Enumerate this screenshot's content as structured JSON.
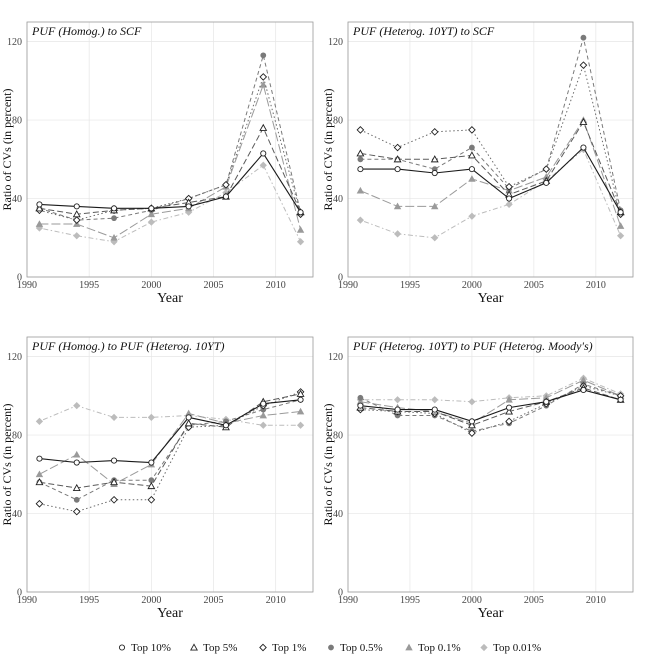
{
  "legend": [
    {
      "name": "Top 10%",
      "marker": "circle-open",
      "color": "#1a1a1a",
      "dash": "solid"
    },
    {
      "name": "Top 5%",
      "marker": "triangle-open",
      "color": "#5a5a5a",
      "dash": "long"
    },
    {
      "name": "Top 1%",
      "marker": "diamond-open",
      "color": "#6a6a6a",
      "dash": "dotted"
    },
    {
      "name": "Top 0.5%",
      "marker": "circle-fill",
      "color": "#7a7a7a",
      "dash": "dashed"
    },
    {
      "name": "Top 0.1%",
      "marker": "triangle-fill",
      "color": "#9a9a9a",
      "dash": "longdash"
    },
    {
      "name": "Top 0.01%",
      "marker": "diamond-fill",
      "color": "#bcbcbc",
      "dash": "dotdash"
    }
  ],
  "chart_data": [
    {
      "type": "line",
      "title": "PUF (Homog.) to SCF",
      "xlabel": "Year",
      "ylabel": "Ratio of CVs (in percent)",
      "xlim": [
        1990,
        2013
      ],
      "ylim": [
        0,
        130
      ],
      "xticks": [
        1990,
        1995,
        2000,
        2005,
        2010
      ],
      "yticks": [
        0,
        40,
        80,
        120
      ],
      "grid": true,
      "x": [
        1991,
        1994,
        1997,
        2000,
        2003,
        2006,
        2009,
        2012
      ],
      "series": [
        {
          "name": "Top 10%",
          "values": [
            37,
            36,
            35,
            35,
            36,
            41,
            63,
            33
          ]
        },
        {
          "name": "Top 5%",
          "values": [
            35,
            32,
            34,
            35,
            38,
            41,
            76,
            33
          ]
        },
        {
          "name": "Top 1%",
          "values": [
            34,
            29,
            34,
            35,
            40,
            47,
            102,
            32
          ]
        },
        {
          "name": "Top 0.5%",
          "values": [
            35,
            29,
            30,
            34,
            40,
            47,
            113,
            33
          ]
        },
        {
          "name": "Top 0.1%",
          "values": [
            27,
            27,
            20,
            32,
            35,
            46,
            98,
            24
          ]
        },
        {
          "name": "Top 0.01%",
          "values": [
            25,
            21,
            18,
            28,
            33,
            43,
            57,
            18
          ]
        }
      ]
    },
    {
      "type": "line",
      "title": "PUF (Heterog. 10YT) to SCF",
      "xlabel": "Year",
      "ylabel": "Ratio of CVs (in percent)",
      "xlim": [
        1990,
        2013
      ],
      "ylim": [
        0,
        130
      ],
      "xticks": [
        1990,
        1995,
        2000,
        2005,
        2010
      ],
      "yticks": [
        0,
        40,
        80,
        120
      ],
      "grid": true,
      "x": [
        1991,
        1994,
        1997,
        2000,
        2003,
        2006,
        2009,
        2012
      ],
      "series": [
        {
          "name": "Top 10%",
          "values": [
            55,
            55,
            53,
            55,
            40,
            48,
            66,
            33
          ]
        },
        {
          "name": "Top 5%",
          "values": [
            63,
            60,
            60,
            62,
            42,
            49,
            79,
            33
          ]
        },
        {
          "name": "Top 1%",
          "values": [
            75,
            66,
            74,
            75,
            46,
            55,
            108,
            32
          ]
        },
        {
          "name": "Top 0.5%",
          "values": [
            60,
            60,
            55,
            66,
            45,
            55,
            122,
            34
          ]
        },
        {
          "name": "Top 0.1%",
          "values": [
            44,
            36,
            36,
            50,
            44,
            51,
            80,
            26
          ]
        },
        {
          "name": "Top 0.01%",
          "values": [
            29,
            22,
            20,
            31,
            37,
            49,
            65,
            21
          ]
        }
      ]
    },
    {
      "type": "line",
      "title": "PUF (Homog.) to PUF (Heterog. 10YT)",
      "xlabel": "Year",
      "ylabel": "Ratio of CVs (in percent)",
      "xlim": [
        1990,
        2013
      ],
      "ylim": [
        0,
        130
      ],
      "xticks": [
        1990,
        1995,
        2000,
        2005,
        2010
      ],
      "yticks": [
        0,
        40,
        80,
        120
      ],
      "grid": true,
      "x": [
        1991,
        1994,
        1997,
        2000,
        2003,
        2006,
        2009,
        2012
      ],
      "series": [
        {
          "name": "Top 10%",
          "values": [
            68,
            66,
            67,
            66,
            89,
            85,
            96,
            98
          ]
        },
        {
          "name": "Top 5%",
          "values": [
            56,
            53,
            56,
            54,
            86,
            84,
            97,
            101
          ]
        },
        {
          "name": "Top 1%",
          "values": [
            45,
            41,
            47,
            47,
            84,
            85,
            95,
            102
          ]
        },
        {
          "name": "Top 0.5%",
          "values": [
            56,
            47,
            57,
            57,
            85,
            87,
            93,
            98
          ]
        },
        {
          "name": "Top 0.1%",
          "values": [
            60,
            70,
            55,
            65,
            91,
            86,
            90,
            92
          ]
        },
        {
          "name": "Top 0.01%",
          "values": [
            87,
            95,
            89,
            89,
            90,
            88,
            85,
            85
          ]
        }
      ]
    },
    {
      "type": "line",
      "title": "PUF (Heterog. 10YT) to PUF (Heterog. Moody's)",
      "xlabel": "Year",
      "ylabel": "Ratio of CVs (in percent)",
      "xlim": [
        1990,
        2013
      ],
      "ylim": [
        0,
        130
      ],
      "xticks": [
        1990,
        1995,
        2000,
        2005,
        2010
      ],
      "yticks": [
        0,
        40,
        80,
        120
      ],
      "grid": true,
      "x": [
        1991,
        1994,
        1997,
        2000,
        2003,
        2006,
        2009,
        2012
      ],
      "series": [
        {
          "name": "Top 10%",
          "values": [
            95,
            93,
            93,
            87,
            94,
            97,
            103,
            98
          ]
        },
        {
          "name": "Top 5%",
          "values": [
            94,
            92,
            92,
            85,
            92,
            97,
            104,
            98
          ]
        },
        {
          "name": "Top 1%",
          "values": [
            93,
            92,
            91,
            81,
            87,
            96,
            105,
            100
          ]
        },
        {
          "name": "Top 0.5%",
          "values": [
            99,
            90,
            90,
            82,
            86,
            95,
            106,
            100
          ]
        },
        {
          "name": "Top 0.1%",
          "values": [
            97,
            94,
            92,
            86,
            98,
            99,
            108,
            100
          ]
        },
        {
          "name": "Top 0.01%",
          "values": [
            98,
            98,
            98,
            97,
            99,
            100,
            109,
            101
          ]
        }
      ]
    }
  ]
}
